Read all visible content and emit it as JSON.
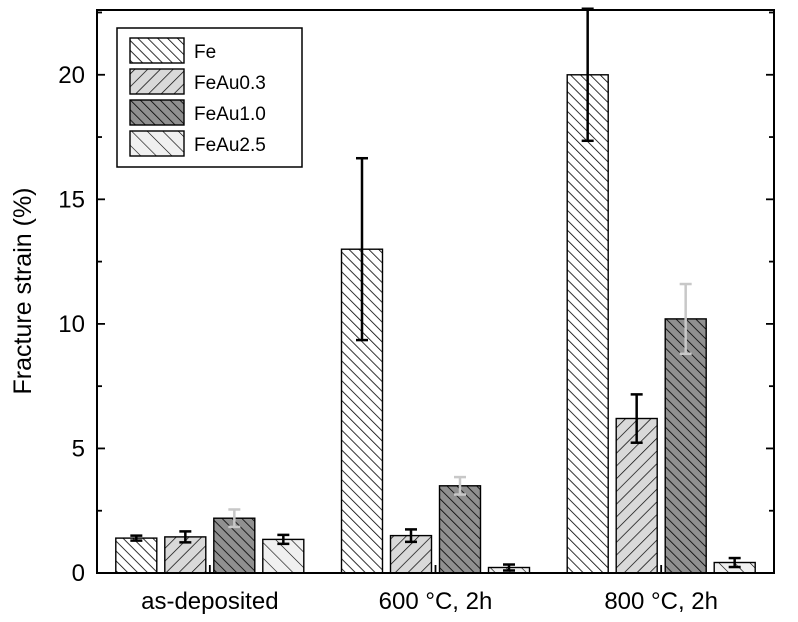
{
  "chart_data": {
    "type": "bar",
    "title": "",
    "xlabel": "",
    "ylabel": "Fracture strain (%)",
    "categories": [
      "as-deposited",
      "600 °C, 2h",
      "800 °C, 2h"
    ],
    "ylim": [
      0,
      22.6
    ],
    "yticks": [
      0,
      5,
      10,
      15,
      20
    ],
    "ytick_labels": [
      "0",
      "5",
      "10",
      "15",
      "20"
    ],
    "grid": false,
    "legend_position": "top-left",
    "series": [
      {
        "name": "Fe",
        "values": [
          1.4,
          13.0,
          20.0
        ],
        "errors": [
          0.1,
          3.65,
          2.65
        ],
        "fill": "#ffffff",
        "pattern": "diag-right",
        "error_color": "#000000"
      },
      {
        "name": "FeAu0.3",
        "values": [
          1.45,
          1.5,
          6.2
        ],
        "errors": [
          0.22,
          0.25,
          0.97
        ],
        "fill": "#d9d9d9",
        "pattern": "diag-left",
        "error_color": "#000000"
      },
      {
        "name": "FeAu1.0",
        "values": [
          2.2,
          3.5,
          10.2
        ],
        "errors": [
          0.35,
          0.35,
          1.4
        ],
        "fill": "#909090",
        "pattern": "diag-right",
        "error_color": "#c8c8c8"
      },
      {
        "name": "FeAu2.5",
        "values": [
          1.35,
          0.22,
          0.42
        ],
        "errors": [
          0.18,
          0.12,
          0.18
        ],
        "fill": "#f0f0f0",
        "pattern": "diag-right-sparse",
        "error_color": "#000000"
      }
    ]
  }
}
